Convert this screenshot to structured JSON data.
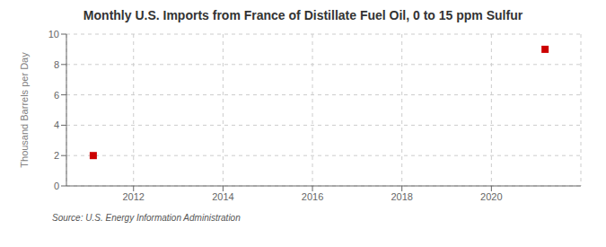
{
  "chart_data": {
    "type": "scatter",
    "title": "Monthly U.S. Imports from France of Distillate Fuel Oil, 0 to 15 ppm Sulfur",
    "ylabel": "Thousand Barrels per Day",
    "annotations": [
      "Source: U.S. Energy Information Administration"
    ],
    "x": [
      2011.1,
      2021.2
    ],
    "values": [
      2.0,
      9.0
    ],
    "color": "#cc0000",
    "marker": "square",
    "xlim": [
      2010.5,
      2022.0
    ],
    "ylim": [
      0,
      10
    ],
    "xticks": [
      2012,
      2014,
      2016,
      2018,
      2020
    ],
    "yticks": [
      0,
      2,
      4,
      6,
      8,
      10
    ],
    "grid": true
  }
}
